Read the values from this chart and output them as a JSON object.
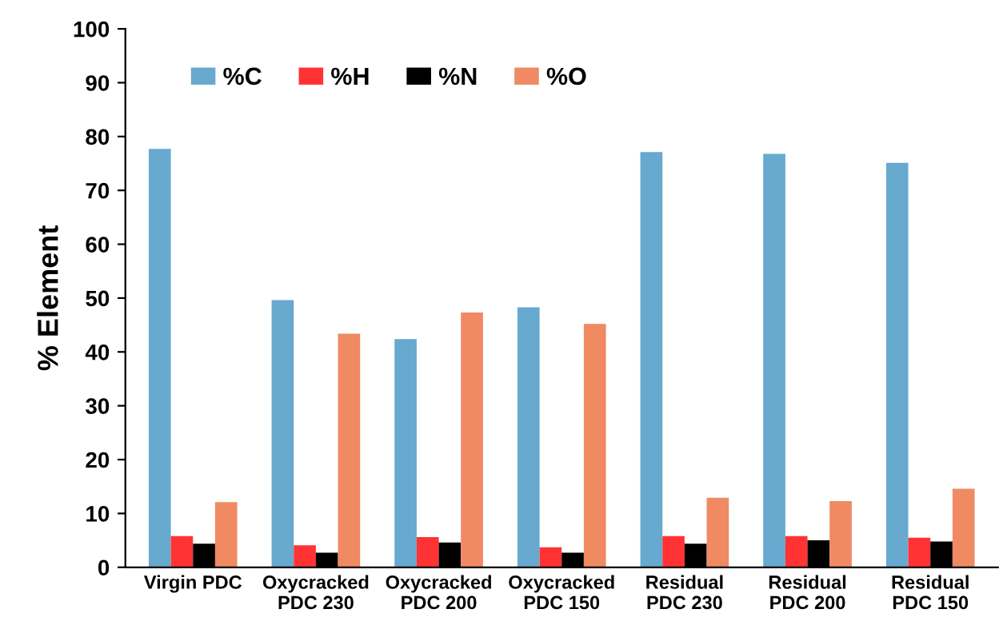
{
  "chart_data": {
    "type": "bar",
    "ylabel": "% Element",
    "categories": [
      "Virgin PDC",
      "Oxycracked\nPDC 230",
      "Oxycracked\nPDC 200",
      "Oxycracked\nPDC 150",
      "Residual\nPDC 230",
      "Residual\nPDC 200",
      "Residual\nPDC 150"
    ],
    "series": [
      {
        "name": "%C",
        "color": "#67a9cf",
        "values": [
          77.7,
          49.6,
          42.4,
          48.3,
          77.1,
          76.8,
          75.1
        ]
      },
      {
        "name": "%H",
        "color": "#ff3333",
        "values": [
          5.8,
          4.1,
          5.6,
          3.7,
          5.8,
          5.8,
          5.5
        ]
      },
      {
        "name": "%N",
        "color": "#000000",
        "values": [
          4.4,
          2.7,
          4.6,
          2.7,
          4.4,
          5.0,
          4.8
        ]
      },
      {
        "name": "%O",
        "color": "#ef8a62",
        "values": [
          12.1,
          43.4,
          47.3,
          45.2,
          12.9,
          12.3,
          14.6
        ]
      }
    ],
    "ylim": [
      0,
      100
    ],
    "yticks": [
      0,
      10,
      20,
      30,
      40,
      50,
      60,
      70,
      80,
      90,
      100
    ],
    "grid": false,
    "legend": "top left"
  }
}
